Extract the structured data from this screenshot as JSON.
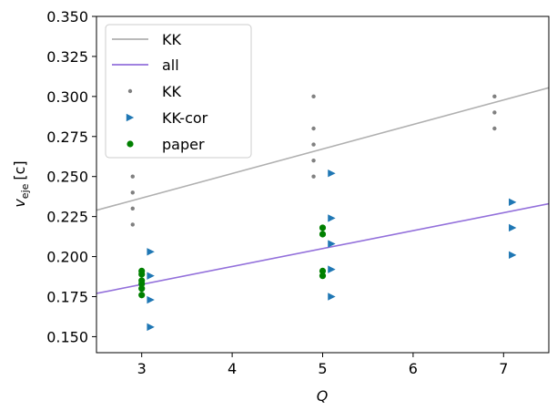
{
  "chart_data": {
    "type": "scatter",
    "title": "",
    "xlabel": "Q",
    "ylabel_main": "v",
    "ylabel_sub": "eje",
    "ylabel_unit": "[c]",
    "xlim": [
      2.5,
      7.5
    ],
    "ylim": [
      0.14,
      0.35
    ],
    "x_ticks": [
      3,
      4,
      5,
      6,
      7
    ],
    "y_ticks": [
      0.15,
      0.175,
      0.2,
      0.225,
      0.25,
      0.275,
      0.3,
      0.325,
      0.35
    ],
    "y_tick_labels": [
      "0.150",
      "0.175",
      "0.200",
      "0.225",
      "0.250",
      "0.275",
      "0.300",
      "0.325",
      "0.350"
    ],
    "grid": false,
    "legend_position": "top-left",
    "lines": [
      {
        "name": "KK",
        "color": "#b0b0b0",
        "slope": 0.0153,
        "intercept": 0.1907
      },
      {
        "name": "all",
        "color": "#9370db",
        "slope": 0.0112,
        "intercept": 0.149
      }
    ],
    "series": [
      {
        "name": "KK",
        "marker": "dot",
        "color": "#808080",
        "points": [
          [
            2.9,
            0.25
          ],
          [
            2.9,
            0.24
          ],
          [
            2.9,
            0.23
          ],
          [
            2.9,
            0.22
          ],
          [
            4.9,
            0.3
          ],
          [
            4.9,
            0.28
          ],
          [
            4.9,
            0.27
          ],
          [
            4.9,
            0.26
          ],
          [
            4.9,
            0.25
          ],
          [
            6.9,
            0.3
          ],
          [
            6.9,
            0.29
          ],
          [
            6.9,
            0.28
          ]
        ]
      },
      {
        "name": "KK-cor",
        "marker": "triangle-right",
        "color": "#1f77b4",
        "points": [
          [
            3.1,
            0.203
          ],
          [
            3.1,
            0.188
          ],
          [
            3.1,
            0.173
          ],
          [
            3.1,
            0.156
          ],
          [
            5.1,
            0.252
          ],
          [
            5.1,
            0.224
          ],
          [
            5.1,
            0.208
          ],
          [
            5.1,
            0.192
          ],
          [
            5.1,
            0.175
          ],
          [
            7.1,
            0.234
          ],
          [
            7.1,
            0.218
          ],
          [
            7.1,
            0.201
          ]
        ]
      },
      {
        "name": "paper",
        "marker": "circle",
        "color": "#008000",
        "points": [
          [
            3.0,
            0.191
          ],
          [
            3.0,
            0.189
          ],
          [
            3.0,
            0.185
          ],
          [
            3.0,
            0.183
          ],
          [
            3.0,
            0.18
          ],
          [
            3.0,
            0.176
          ],
          [
            5.0,
            0.218
          ],
          [
            5.0,
            0.214
          ],
          [
            5.0,
            0.191
          ],
          [
            5.0,
            0.188
          ]
        ]
      }
    ],
    "legend_entries": [
      "KK",
      "all",
      "KK",
      "KK-cor",
      "paper"
    ]
  }
}
